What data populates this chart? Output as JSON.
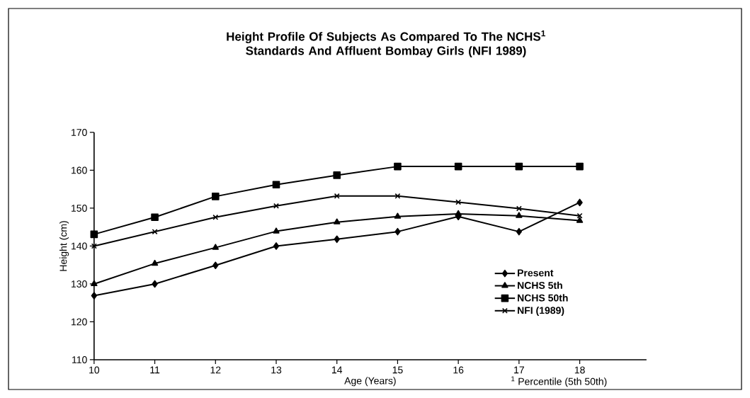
{
  "chart_data": {
    "type": "line",
    "title": "Height Profile Of Subjects As Compared To The NCHS$^{1}$ Standards And Affluent Bombay Girls (NFI 1989)",
    "xlabel": "Age (Years)",
    "ylabel": "Height (cm)",
    "annotations": [
      "$^{1}$ Percentile (5th 50th)"
    ],
    "x": [
      10,
      11,
      12,
      13,
      14,
      15,
      16,
      17,
      18
    ],
    "series": [
      {
        "name": "Present",
        "color": "#000000",
        "marker": "diamond",
        "values": [
          126.9,
          130,
          134.9,
          140,
          141.8,
          143.8,
          147.8,
          143.8,
          151.5
        ]
      },
      {
        "name": "NCHS 5th",
        "color": "#000000",
        "marker": "triangle",
        "values": [
          130,
          135.4,
          139.6,
          143.9,
          146.3,
          147.8,
          148.5,
          148,
          146.7
        ]
      },
      {
        "name": "NCHS 50th",
        "color": "#000000",
        "marker": "square",
        "values": [
          143.1,
          147.6,
          153.1,
          156.2,
          158.7,
          161,
          161,
          161,
          161
        ]
      },
      {
        "name": "NFI (1989)",
        "color": "#000000",
        "marker": "cross",
        "values": [
          140,
          143.8,
          147.6,
          150.6,
          153.2,
          153.2,
          151.6,
          149.9,
          148
        ]
      }
    ],
    "xlim": [
      10,
      19.1
    ],
    "ylim": [
      110,
      170
    ],
    "xticks": [
      10,
      11,
      12,
      13,
      14,
      15,
      16,
      17,
      18
    ],
    "yticks": [
      110,
      120,
      130,
      140,
      150,
      160,
      170
    ],
    "grid": false,
    "legend": "bottom right",
    "line_style": "solid"
  }
}
